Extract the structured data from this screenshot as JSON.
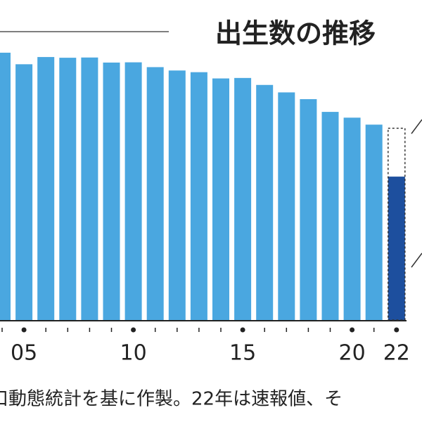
{
  "chart_data": {
    "type": "bar",
    "title": "出生数の推移",
    "categories": [
      null,
      "05",
      null,
      null,
      null,
      null,
      "10",
      null,
      null,
      null,
      null,
      "15",
      null,
      null,
      null,
      null,
      "20",
      null,
      "22"
    ],
    "series": [
      {
        "color": "#4aa7e0",
        "values": [
          1111,
          1063,
          1093,
          1090,
          1091,
          1070,
          1071,
          1051,
          1037,
          1030,
          1004,
          1006,
          977,
          946,
          918,
          865,
          841,
          812,
          null
        ]
      },
      {
        "color": "#1d4f9e",
        "values": [
          null,
          null,
          null,
          null,
          null,
          null,
          null,
          null,
          null,
          null,
          null,
          null,
          null,
          null,
          null,
          null,
          null,
          null,
          596
        ]
      },
      {
        "color": "#333333",
        "style": "dashed",
        "values": [
          null,
          null,
          null,
          null,
          null,
          null,
          null,
          null,
          null,
          null,
          null,
          null,
          null,
          null,
          null,
          null,
          null,
          null,
          797
        ]
      }
    ],
    "ylim": [
      0,
      1330
    ],
    "note": "口動態統計を基に作製。22年は速報値、そ"
  }
}
